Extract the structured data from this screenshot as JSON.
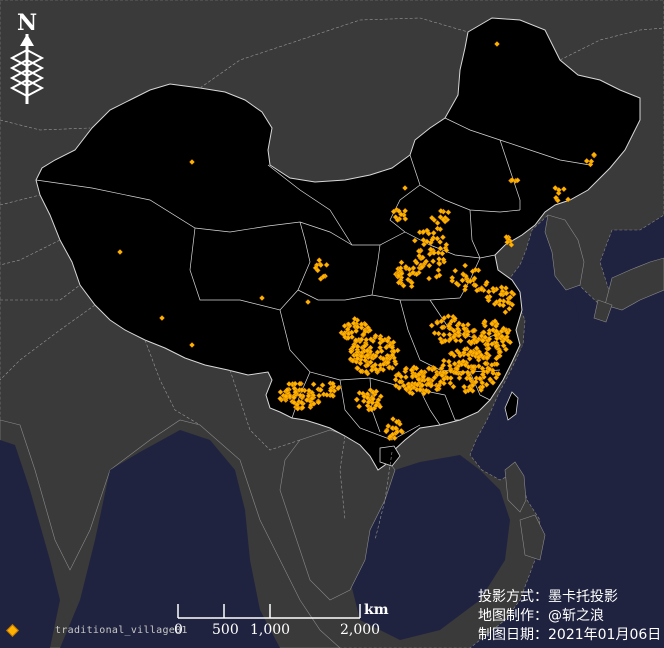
{
  "map": {
    "north_symbol": "N",
    "north_icon": "north-arrow-icon",
    "colors": {
      "ocean": "#1f2340",
      "land_other": "#3a3a3a",
      "china_fill": "#000000",
      "boundary": "#d8d8d8",
      "point_fill": "#ffb300",
      "point_stroke": "#c77800"
    }
  },
  "legend": {
    "label": "traditional_village01"
  },
  "scale_bar": {
    "ticks": [
      "0",
      "500",
      "1,000",
      "2,000"
    ],
    "unit": "km"
  },
  "info": {
    "projection": "投影方式：墨卡托投影",
    "author": "地图制作：@斩之浪",
    "date": "制图日期：2021年01月06日"
  }
}
